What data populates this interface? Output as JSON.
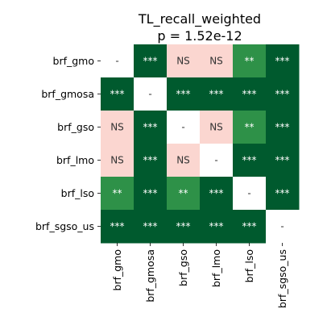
{
  "chart_data": {
    "type": "heatmap",
    "title": "TL_recall_weighted",
    "subtitle": "p = 1.52e-12",
    "row_labels": [
      "brf_gmo",
      "brf_gmosa",
      "brf_gso",
      "brf_lmo",
      "brf_lso",
      "brf_sgso_us"
    ],
    "col_labels": [
      "brf_gmo",
      "brf_gmosa",
      "brf_gso",
      "brf_lmo",
      "brf_lso",
      "brf_sgso_us"
    ],
    "cells": [
      [
        "-",
        "***",
        "NS",
        "NS",
        "**",
        "***"
      ],
      [
        "***",
        "-",
        "***",
        "***",
        "***",
        "***"
      ],
      [
        "NS",
        "***",
        "-",
        "NS",
        "**",
        "***"
      ],
      [
        "NS",
        "***",
        "NS",
        "-",
        "***",
        "***"
      ],
      [
        "**",
        "***",
        "**",
        "***",
        "-",
        "***"
      ],
      [
        "***",
        "***",
        "***",
        "***",
        "***",
        "-"
      ]
    ],
    "colors": {
      "***": "#005a2e",
      "**": "#2e9148",
      "NS": "#fbd6d0",
      "-": "#ffffff"
    },
    "text_colors": {
      "***": "#ffffff",
      "**": "#ffffff",
      "NS": "#333333",
      "-": "#333333"
    }
  }
}
